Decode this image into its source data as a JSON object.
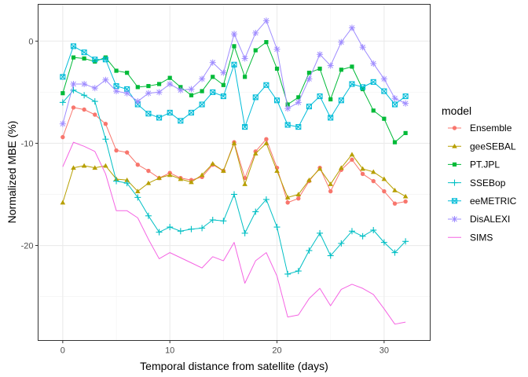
{
  "chart_data": {
    "type": "line",
    "xlabel": "Temporal distance from satellite (days)",
    "ylabel": "Normalized MBE (%)",
    "xlim": [
      -2.3,
      34.3
    ],
    "ylim": [
      -29.3,
      3.6
    ],
    "xticks": [
      0,
      10,
      20,
      30
    ],
    "yticks": [
      0,
      -10,
      -20
    ],
    "grid": true,
    "legend": {
      "title": "model",
      "placement": "right"
    },
    "x": [
      0,
      1,
      2,
      3,
      4,
      5,
      6,
      7,
      8,
      9,
      10,
      11,
      12,
      13,
      14,
      15,
      16,
      17,
      18,
      19,
      20,
      21,
      22,
      23,
      24,
      25,
      26,
      27,
      28,
      29,
      30,
      31,
      32
    ],
    "series": [
      {
        "name": "Ensemble",
        "color": "#F8766D",
        "marker": "circle",
        "values": [
          -9.4,
          -6.5,
          -6.7,
          -7.2,
          -8.1,
          -10.7,
          -10.9,
          -12.1,
          -12.7,
          -13.4,
          -12.9,
          -13.4,
          -13.6,
          -13.3,
          -12.1,
          -12.7,
          -9.9,
          -13.4,
          -10.8,
          -9.6,
          -12.4,
          -15.8,
          -15.4,
          -13.7,
          -12.4,
          -14.7,
          -12.6,
          -11.6,
          -13.0,
          -13.7,
          -14.7,
          -15.9,
          -15.7
        ]
      },
      {
        "name": "geeSEBAL",
        "color": "#B79F00",
        "marker": "triangle",
        "values": [
          -15.8,
          -12.4,
          -12.2,
          -12.4,
          -12.2,
          -13.5,
          -13.6,
          -14.7,
          -13.9,
          -13.4,
          -13.1,
          -13.5,
          -13.8,
          -13.1,
          -12.0,
          -12.7,
          -10.0,
          -14.0,
          -11.0,
          -10.0,
          -12.7,
          -15.3,
          -15.0,
          -13.6,
          -12.5,
          -14.0,
          -12.4,
          -11.1,
          -12.5,
          -12.8,
          -13.5,
          -14.6,
          -15.2
        ]
      },
      {
        "name": "PT.JPL",
        "color": "#00BA38",
        "marker": "square",
        "values": [
          -5.1,
          -1.6,
          -1.7,
          -2.0,
          -1.6,
          -2.9,
          -3.1,
          -4.5,
          -4.4,
          -4.2,
          -3.6,
          -4.5,
          -5.3,
          -4.9,
          -3.5,
          -4.3,
          -0.5,
          -3.5,
          -0.9,
          -0.1,
          -2.7,
          -6.2,
          -5.5,
          -3.1,
          -2.7,
          -5.7,
          -2.8,
          -2.5,
          -4.7,
          -6.8,
          -7.6,
          -9.9,
          -9.0
        ]
      },
      {
        "name": "SSEBop",
        "color": "#00BFC4",
        "marker": "plus",
        "values": [
          -6.0,
          -4.8,
          -5.3,
          -5.9,
          -9.6,
          -13.7,
          -13.9,
          -15.3,
          -17.1,
          -18.7,
          -18.2,
          -18.6,
          -18.4,
          -18.3,
          -17.5,
          -17.6,
          -15.0,
          -18.8,
          -16.7,
          -15.5,
          -18.2,
          -22.8,
          -22.5,
          -20.5,
          -18.8,
          -21.0,
          -19.8,
          -18.6,
          -19.1,
          -18.5,
          -19.7,
          -20.7,
          -19.6
        ]
      },
      {
        "name": "eeMETRIC",
        "color": "#00BCD8",
        "marker": "boxsquare",
        "values": [
          -3.5,
          -0.5,
          -1.1,
          -1.8,
          -1.8,
          -4.4,
          -4.7,
          -6.2,
          -7.1,
          -7.5,
          -7.0,
          -7.8,
          -7.0,
          -6.2,
          -5.0,
          -5.4,
          -2.3,
          -8.4,
          -5.5,
          -4.3,
          -5.8,
          -8.2,
          -8.4,
          -6.4,
          -5.4,
          -7.5,
          -5.8,
          -4.2,
          -4.5,
          -4.0,
          -4.9,
          -6.2,
          -5.4
        ]
      },
      {
        "name": "DisALEXI",
        "color": "#9F8CFF",
        "marker": "star",
        "values": [
          -8.1,
          -4.2,
          -4.2,
          -4.6,
          -3.8,
          -4.9,
          -5.1,
          -5.9,
          -5.1,
          -5.0,
          -4.2,
          -4.8,
          -4.7,
          -3.7,
          -2.1,
          -3.1,
          0.7,
          -1.7,
          0.8,
          2.0,
          -0.8,
          -6.6,
          -6.0,
          -3.7,
          -1.3,
          -2.4,
          -0.1,
          1.3,
          -0.6,
          -2.2,
          -3.7,
          -5.6,
          -6.1
        ]
      },
      {
        "name": "SIMS",
        "color": "#F564E3",
        "marker": "none",
        "values": [
          -12.3,
          -9.9,
          -10.3,
          -10.8,
          -13.0,
          -16.6,
          -16.6,
          -17.3,
          -19.4,
          -21.3,
          -20.7,
          -21.2,
          -21.7,
          -22.2,
          -21.1,
          -21.5,
          -19.7,
          -23.7,
          -21.5,
          -20.7,
          -23.0,
          -27.0,
          -26.8,
          -25.2,
          -24.2,
          -25.9,
          -24.3,
          -23.8,
          -24.2,
          -24.8,
          -26.2,
          -27.7,
          -27.5
        ]
      }
    ]
  }
}
